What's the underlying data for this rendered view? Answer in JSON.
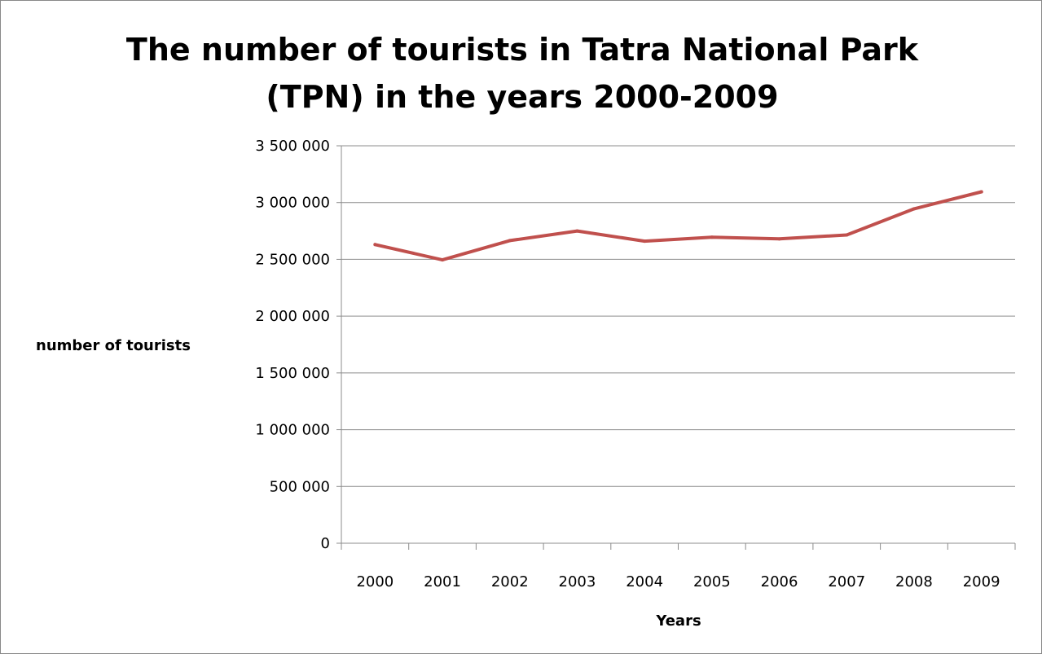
{
  "chart_data": {
    "type": "line",
    "title_lines": [
      "The number of tourists in Tatra National Park",
      "(TPN) in the years 2000-2009"
    ],
    "xlabel": "Years",
    "ylabel": "number of tourists",
    "categories": [
      "2000",
      "2001",
      "2002",
      "2003",
      "2004",
      "2005",
      "2006",
      "2007",
      "2008",
      "2009"
    ],
    "series": [
      {
        "values": [
          2630000,
          2495000,
          2665000,
          2750000,
          2660000,
          2695000,
          2680000,
          2715000,
          2945000,
          3095000
        ],
        "color": "#c0504d"
      }
    ],
    "ylim": [
      0,
      3500000
    ],
    "y_ticks": [
      {
        "value": 0,
        "label": "0"
      },
      {
        "value": 500000,
        "label": "500 000"
      },
      {
        "value": 1000000,
        "label": "1 000 000"
      },
      {
        "value": 1500000,
        "label": "1 500 000"
      },
      {
        "value": 2000000,
        "label": "2 000 000"
      },
      {
        "value": 2500000,
        "label": "2 500 000"
      },
      {
        "value": 3000000,
        "label": "3 000 000"
      },
      {
        "value": 3500000,
        "label": "3 500 000"
      }
    ],
    "grid": true,
    "legend": "none",
    "colors": {
      "gridline": "#8c8c8c",
      "axis": "#8c8c8c"
    }
  }
}
